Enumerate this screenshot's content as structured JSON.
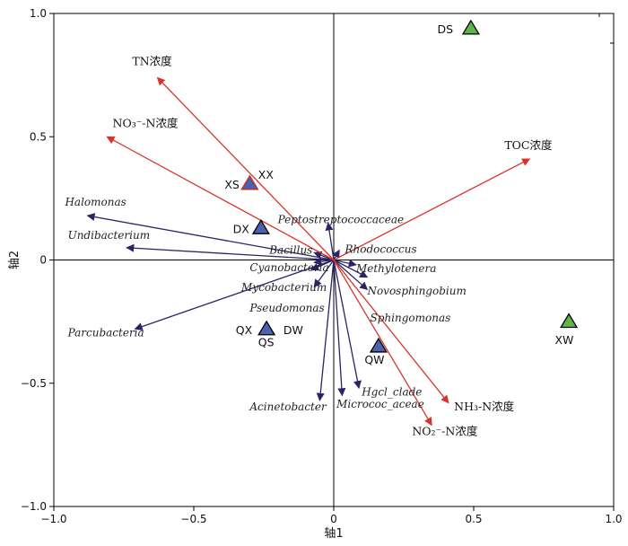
{
  "chart_data": {
    "type": "biplot",
    "xlabel": "轴1",
    "ylabel": "轴2",
    "xlim": [
      -1.0,
      1.0
    ],
    "ylim": [
      -1.0,
      1.0
    ],
    "xticks": [
      "−1.0",
      "−0.5",
      "0",
      "0.5",
      "1.0"
    ],
    "xtick_values": [
      -1.0,
      -0.5,
      0,
      0.5,
      1.0
    ],
    "yticks": [
      "1.0",
      "0.5",
      "0",
      "−0.5",
      "−1.0"
    ],
    "ytick_values": [
      1.0,
      0.5,
      0,
      -0.5,
      -1.0
    ],
    "env_color": "#d9342b",
    "species_color": "#2a2466",
    "env_vectors": [
      {
        "label": "TN浓度",
        "x": -0.63,
        "y": 0.74,
        "lx": -0.72,
        "ly": 0.79
      },
      {
        "label": "NO₃⁻-N浓度",
        "x": -0.81,
        "y": 0.5,
        "lx": -0.79,
        "ly": 0.54
      },
      {
        "label": "TOC浓度",
        "x": 0.7,
        "y": 0.41,
        "lx": 0.61,
        "ly": 0.45
      },
      {
        "label": "NH₃-N浓度",
        "x": 0.41,
        "y": -0.58,
        "lx": 0.43,
        "ly": -0.61
      },
      {
        "label": "NO₂⁻-N浓度",
        "x": 0.35,
        "y": -0.67,
        "lx": 0.28,
        "ly": -0.71
      }
    ],
    "species_vectors": [
      {
        "label": "Halomonas",
        "x": -0.88,
        "y": 0.18,
        "lx": -0.96,
        "ly": 0.22
      },
      {
        "label": "Undibacterium",
        "x": -0.74,
        "y": 0.05,
        "lx": -0.95,
        "ly": 0.085
      },
      {
        "label": "Parcubacteria",
        "x": -0.71,
        "y": -0.28,
        "lx": -0.95,
        "ly": -0.31
      },
      {
        "label": "Peptostreptococcaceae",
        "x": -0.02,
        "y": 0.15,
        "lx": -0.2,
        "ly": 0.15
      },
      {
        "label": "Bacillus",
        "x": -0.07,
        "y": 0.03,
        "lx": -0.23,
        "ly": 0.025
      },
      {
        "label": "Rhodococcus",
        "x": 0.02,
        "y": 0.04,
        "lx": 0.04,
        "ly": 0.03
      },
      {
        "label": "Cyanobacteria",
        "x": -0.07,
        "y": -0.01,
        "lx": -0.3,
        "ly": -0.045
      },
      {
        "label": "Methylotenera",
        "x": 0.08,
        "y": -0.02,
        "lx": 0.08,
        "ly": -0.05
      },
      {
        "label": "Mycobacterium",
        "x": -0.08,
        "y": -0.04,
        "lx": -0.33,
        "ly": -0.125
      },
      {
        "label": "Novosphingobium",
        "x": 0.12,
        "y": -0.07,
        "lx": 0.12,
        "ly": -0.14
      },
      {
        "label": "Pseudomonas",
        "x": -0.07,
        "y": -0.11,
        "lx": -0.3,
        "ly": -0.21
      },
      {
        "label": "Sphingomonas",
        "x": 0.12,
        "y": -0.12,
        "lx": 0.13,
        "ly": -0.25
      },
      {
        "label": "Acinetobacter",
        "x": -0.05,
        "y": -0.57,
        "lx": -0.3,
        "ly": -0.61
      },
      {
        "label": "Micrococ_aceae",
        "x": 0.03,
        "y": -0.55,
        "lx": 0.01,
        "ly": -0.6
      },
      {
        "label": "Hgcl_clade",
        "x": 0.09,
        "y": -0.52,
        "lx": 0.1,
        "ly": -0.55
      }
    ],
    "sites": [
      {
        "label": "DS",
        "x": 0.49,
        "y": 0.94,
        "color": "#5fb44a",
        "lx": 0.37,
        "ly": 0.92
      },
      {
        "label": "XS",
        "x": -0.3,
        "y": 0.31,
        "color": "#4a62b0",
        "lx": -0.39,
        "ly": 0.29
      },
      {
        "label": "XX",
        "x": -0.3,
        "y": 0.31,
        "color": "#d9342b",
        "lx": -0.27,
        "ly": 0.33
      },
      {
        "label": "DX",
        "x": -0.26,
        "y": 0.13,
        "color": "#4a62b0",
        "lx": -0.36,
        "ly": 0.11
      },
      {
        "label": "QX",
        "x": -0.24,
        "y": -0.28,
        "color": "#4a62b0",
        "lx": -0.35,
        "ly": -0.3
      },
      {
        "label": "QS",
        "x": -0.24,
        "y": -0.28,
        "color": "#4a62b0",
        "lx": -0.27,
        "ly": -0.35
      },
      {
        "label": "DW",
        "x": -0.24,
        "y": -0.28,
        "color": "#4a62b0",
        "lx": -0.18,
        "ly": -0.3
      },
      {
        "label": "QW",
        "x": 0.16,
        "y": -0.35,
        "color": "#4a62b0",
        "lx": 0.11,
        "ly": -0.42
      },
      {
        "label": "XW",
        "x": 0.84,
        "y": -0.25,
        "color": "#5fb44a",
        "lx": 0.79,
        "ly": -0.34
      }
    ]
  }
}
